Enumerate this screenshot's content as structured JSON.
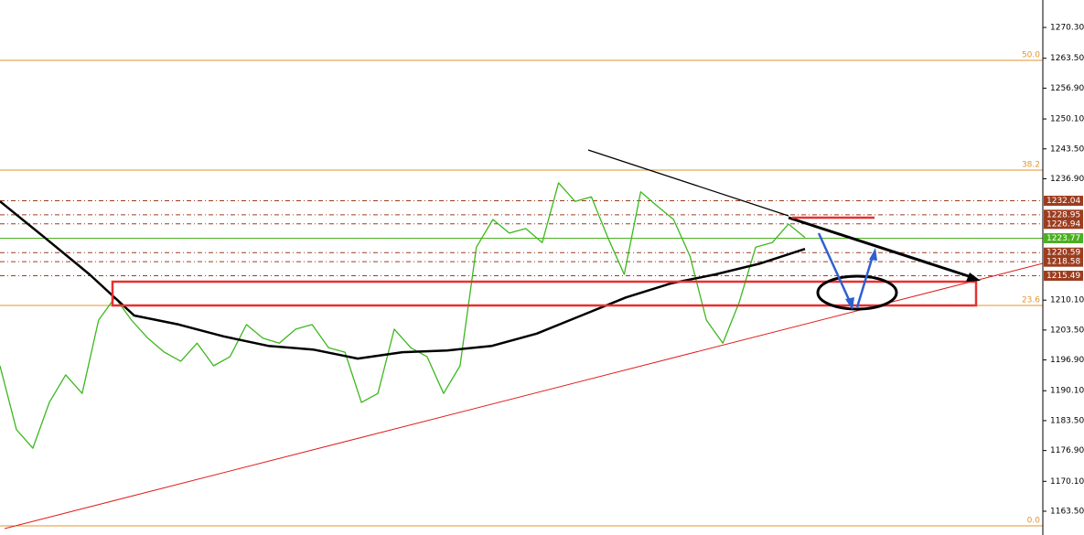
{
  "chart_data": {
    "type": "line",
    "ylim": [
      1158.25,
      1276.36
    ],
    "yticks": [
      {
        "value": 1163.5,
        "label": "1163.50"
      },
      {
        "value": 1170.1,
        "label": "1170.10"
      },
      {
        "value": 1176.9,
        "label": "1176.90"
      },
      {
        "value": 1183.5,
        "label": "1183.50"
      },
      {
        "value": 1190.1,
        "label": "1190.10"
      },
      {
        "value": 1196.9,
        "label": "1196.90"
      },
      {
        "value": 1203.5,
        "label": "1203.50"
      },
      {
        "value": 1210.1,
        "label": "1210.10"
      },
      {
        "value": 1236.9,
        "label": "1236.90"
      },
      {
        "value": 1243.5,
        "label": "1243.50"
      },
      {
        "value": 1250.1,
        "label": "1250.10"
      },
      {
        "value": 1256.9,
        "label": "1256.90"
      },
      {
        "value": 1263.5,
        "label": "1263.50"
      },
      {
        "value": 1270.3,
        "label": "1270.30"
      }
    ],
    "price": {
      "color": "#3cb81e",
      "values": [
        1195.6,
        1181.5,
        1177.4,
        1187.5,
        1193.6,
        1189.5,
        1205.7,
        1210.7,
        1205.7,
        1201.7,
        1198.6,
        1196.6,
        1200.6,
        1195.6,
        1197.6,
        1204.7,
        1201.7,
        1200.6,
        1203.7,
        1204.7,
        1199.6,
        1198.6,
        1187.5,
        1189.5,
        1203.7,
        1199.6,
        1197.6,
        1189.5,
        1195.6,
        1221.8,
        1227.9,
        1224.9,
        1225.9,
        1222.8,
        1236.0,
        1231.9,
        1232.9,
        1223.9,
        1215.8,
        1234.0,
        1230.9,
        1227.9,
        1219.8,
        1205.7,
        1200.6,
        1209.7,
        1221.8,
        1222.8,
        1226.9,
        1223.9
      ]
    },
    "moving_average": {
      "color": "#000000",
      "values": [
        1231.9,
        1223.9,
        1215.8,
        1206.7,
        1204.7,
        1202.1,
        1200.0,
        1199.2,
        1197.2,
        1198.6,
        1199.0,
        1200.0,
        1202.7,
        1206.7,
        1210.7,
        1213.8,
        1215.8,
        1218.2,
        1221.4
      ]
    },
    "price_levels": {
      "color": "#9c3d1f",
      "values": [
        1232.04,
        1228.95,
        1226.94,
        1220.59,
        1218.58,
        1215.49
      ]
    },
    "current_price": {
      "color": "#4caf22",
      "value": 1223.77
    },
    "fib_levels": {
      "color": "#e3962e",
      "labels": [
        "50.0",
        "38.2",
        "23.6",
        "0.0"
      ],
      "prices": [
        1263.03,
        1238.8,
        1208.92,
        1160.26
      ]
    }
  }
}
